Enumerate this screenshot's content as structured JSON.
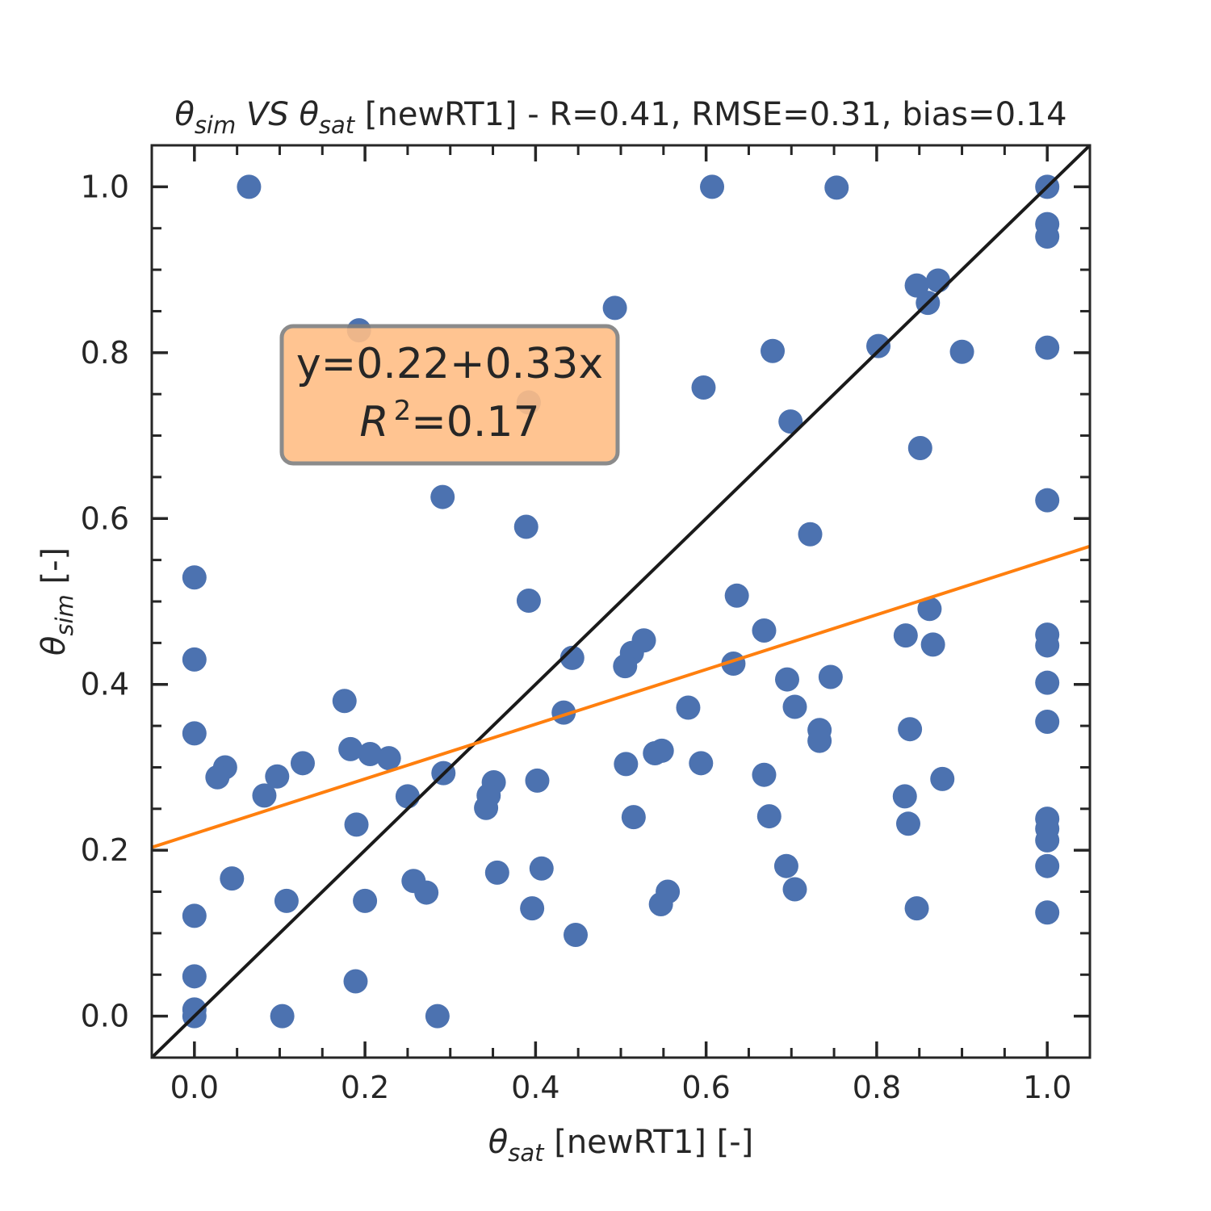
{
  "chart_data": {
    "type": "scatter",
    "title": {
      "parts": [
        {
          "text": "θ",
          "style": "italic"
        },
        {
          "text": "sim",
          "style": "italic-sub"
        },
        {
          "text": " VS ",
          "style": "italic"
        },
        {
          "text": "θ",
          "style": "italic"
        },
        {
          "text": "sat",
          "style": "italic-sub"
        },
        {
          "text": " [newRT1] - R=0.41, RMSE=0.31, bias=0.14",
          "style": "normal"
        }
      ]
    },
    "xlabel": {
      "parts": [
        {
          "text": "θ",
          "style": "italic"
        },
        {
          "text": "sat",
          "style": "italic-sub"
        },
        {
          "text": " [newRT1] [-]",
          "style": "normal"
        }
      ]
    },
    "ylabel": {
      "parts": [
        {
          "text": "θ",
          "style": "italic"
        },
        {
          "text": "sim",
          "style": "italic-sub"
        },
        {
          "text": " [-]",
          "style": "normal"
        }
      ]
    },
    "xlim": [
      -0.05,
      1.05
    ],
    "ylim": [
      -0.05,
      1.05
    ],
    "xticks": [
      0.0,
      0.2,
      0.4,
      0.6,
      0.8,
      1.0
    ],
    "yticks": [
      0.0,
      0.2,
      0.4,
      0.6,
      0.8,
      1.0
    ],
    "tick_labels": [
      "0.0",
      "0.2",
      "0.4",
      "0.6",
      "0.8",
      "1.0"
    ],
    "minor_step": 0.05,
    "grid": false,
    "point_color": "#4c72b0",
    "identity_line": {
      "color": "#1a1a1a",
      "from": [
        -0.05,
        -0.05
      ],
      "to": [
        1.05,
        1.05
      ]
    },
    "fit_line": {
      "color": "#ff7f0e",
      "intercept": 0.22,
      "slope": 0.33
    },
    "annotation": {
      "line1": "y=0.22+0.33x",
      "line2_symbol": "R",
      "line2_sup": "2",
      "line2_rest": "=0.17",
      "box_color": "#ffbe86",
      "edge_color": "#7f7f7f"
    },
    "points": [
      [
        0.064,
        1.0
      ],
      [
        0.607,
        1.0
      ],
      [
        0.753,
        0.999
      ],
      [
        1.0,
        1.0
      ],
      [
        1.0,
        0.955
      ],
      [
        1.0,
        0.94
      ],
      [
        0.847,
        0.881
      ],
      [
        0.872,
        0.887
      ],
      [
        0.86,
        0.86
      ],
      [
        0.493,
        0.854
      ],
      [
        0.193,
        0.827
      ],
      [
        0.678,
        0.802
      ],
      [
        0.802,
        0.808
      ],
      [
        0.9,
        0.801
      ],
      [
        1.0,
        0.806
      ],
      [
        0.392,
        0.74
      ],
      [
        0.597,
        0.758
      ],
      [
        0.699,
        0.717
      ],
      [
        0.851,
        0.685
      ],
      [
        0.291,
        0.626
      ],
      [
        1.0,
        0.622
      ],
      [
        0.389,
        0.59
      ],
      [
        0.722,
        0.581
      ],
      [
        0.0,
        0.529
      ],
      [
        0.392,
        0.501
      ],
      [
        0.636,
        0.507
      ],
      [
        0.668,
        0.465
      ],
      [
        0.862,
        0.491
      ],
      [
        0.834,
        0.459
      ],
      [
        1.0,
        0.46
      ],
      [
        1.0,
        0.447
      ],
      [
        0.866,
        0.448
      ],
      [
        0.443,
        0.432
      ],
      [
        0.0,
        0.43
      ],
      [
        0.527,
        0.453
      ],
      [
        0.513,
        0.438
      ],
      [
        0.505,
        0.422
      ],
      [
        0.632,
        0.425
      ],
      [
        0.695,
        0.406
      ],
      [
        0.746,
        0.409
      ],
      [
        1.0,
        0.402
      ],
      [
        0.176,
        0.38
      ],
      [
        0.433,
        0.366
      ],
      [
        0.579,
        0.372
      ],
      [
        0.704,
        0.373
      ],
      [
        0.733,
        0.345
      ],
      [
        0.839,
        0.346
      ],
      [
        0.733,
        0.332
      ],
      [
        1.0,
        0.355
      ],
      [
        0.0,
        0.341
      ],
      [
        0.183,
        0.322
      ],
      [
        0.206,
        0.316
      ],
      [
        0.228,
        0.311
      ],
      [
        0.127,
        0.305
      ],
      [
        0.036,
        0.3
      ],
      [
        0.027,
        0.288
      ],
      [
        0.097,
        0.289
      ],
      [
        0.082,
        0.266
      ],
      [
        0.25,
        0.265
      ],
      [
        0.292,
        0.293
      ],
      [
        0.351,
        0.282
      ],
      [
        0.345,
        0.266
      ],
      [
        0.342,
        0.251
      ],
      [
        0.402,
        0.284
      ],
      [
        0.506,
        0.304
      ],
      [
        0.54,
        0.317
      ],
      [
        0.548,
        0.32
      ],
      [
        0.594,
        0.305
      ],
      [
        0.668,
        0.291
      ],
      [
        0.877,
        0.286
      ],
      [
        0.833,
        0.265
      ],
      [
        0.19,
        0.231
      ],
      [
        0.515,
        0.24
      ],
      [
        0.674,
        0.241
      ],
      [
        0.837,
        0.232
      ],
      [
        1.0,
        0.238
      ],
      [
        1.0,
        0.226
      ],
      [
        1.0,
        0.212
      ],
      [
        0.044,
        0.166
      ],
      [
        0.257,
        0.163
      ],
      [
        0.272,
        0.149
      ],
      [
        0.108,
        0.139
      ],
      [
        0.2,
        0.139
      ],
      [
        0.355,
        0.173
      ],
      [
        0.407,
        0.178
      ],
      [
        0.694,
        0.181
      ],
      [
        0.704,
        0.153
      ],
      [
        0.555,
        0.15
      ],
      [
        0.547,
        0.135
      ],
      [
        1.0,
        0.181
      ],
      [
        0.0,
        0.121
      ],
      [
        0.396,
        0.13
      ],
      [
        0.847,
        0.13
      ],
      [
        1.0,
        0.125
      ],
      [
        0.447,
        0.098
      ],
      [
        0.0,
        0.048
      ],
      [
        0.189,
        0.042
      ],
      [
        0.0,
        0.008
      ],
      [
        0.0,
        0.0
      ],
      [
        0.103,
        0.0
      ],
      [
        0.285,
        0.0
      ]
    ]
  }
}
